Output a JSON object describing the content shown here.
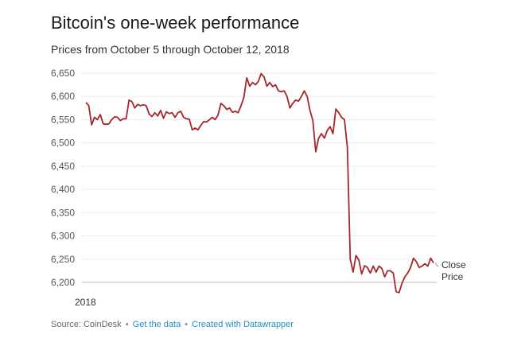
{
  "header": {
    "title": "Bitcoin's one-week performance",
    "subtitle": "Prices from October 5 through October 12, 2018"
  },
  "footer": {
    "source_label": "Source: CoinDesk",
    "separator": "•",
    "get_data_link": "Get the data",
    "datawrapper_link": "Created with Datawrapper"
  },
  "colors": {
    "line": "#a8262b",
    "grid": "#dddddd",
    "tick_text": "#555555",
    "link": "#1f8fbf"
  },
  "chart_data": {
    "type": "line",
    "title": "Bitcoin's one-week performance",
    "subtitle": "Prices from October 5 through October 12, 2018",
    "xlabel": "",
    "ylabel": "",
    "x_tick_labels": [
      "2018"
    ],
    "ylim": [
      6175,
      6660
    ],
    "y_ticks": [
      6200,
      6250,
      6300,
      6350,
      6400,
      6450,
      6500,
      6550,
      6600,
      6650
    ],
    "y_tick_labels": [
      "6,200",
      "6,250",
      "6,300",
      "6,350",
      "6,400",
      "6,450",
      "6,500",
      "6,550",
      "6,600",
      "6,650"
    ],
    "grid": true,
    "series": [
      {
        "name": "Close Price",
        "label_lines": [
          "Close",
          "Price"
        ],
        "values": [
          6587,
          6580,
          6539,
          6555,
          6550,
          6561,
          6541,
          6540,
          6541,
          6550,
          6556,
          6555,
          6548,
          6552,
          6552,
          6592,
          6589,
          6575,
          6583,
          6580,
          6582,
          6580,
          6562,
          6557,
          6565,
          6558,
          6570,
          6553,
          6567,
          6563,
          6565,
          6555,
          6565,
          6568,
          6555,
          6552,
          6551,
          6528,
          6532,
          6528,
          6538,
          6546,
          6545,
          6550,
          6555,
          6550,
          6560,
          6585,
          6580,
          6572,
          6575,
          6566,
          6568,
          6565,
          6580,
          6598,
          6640,
          6622,
          6630,
          6625,
          6632,
          6649,
          6642,
          6622,
          6630,
          6621,
          6625,
          6612,
          6610,
          6612,
          6600,
          6575,
          6585,
          6592,
          6590,
          6600,
          6612,
          6600,
          6570,
          6548,
          6481,
          6510,
          6520,
          6510,
          6527,
          6535,
          6520,
          6573,
          6565,
          6555,
          6550,
          6490,
          6250,
          6222,
          6258,
          6248,
          6218,
          6236,
          6232,
          6220,
          6235,
          6222,
          6235,
          6230,
          6212,
          6225,
          6225,
          6220,
          6180,
          6178,
          6198,
          6212,
          6220,
          6232,
          6252,
          6245,
          6232,
          6235,
          6240,
          6235,
          6252,
          6242
        ]
      }
    ]
  }
}
